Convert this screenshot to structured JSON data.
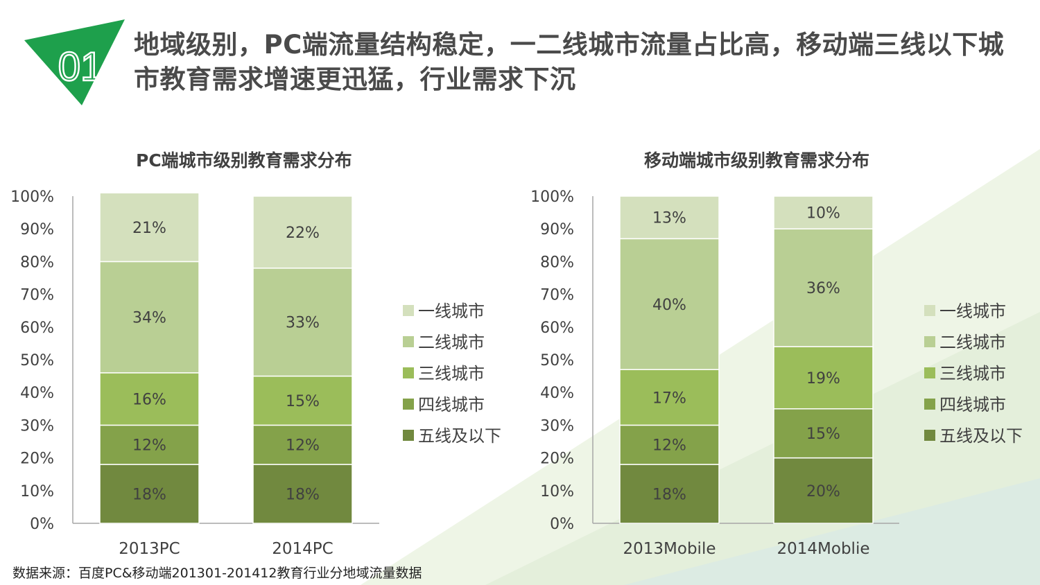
{
  "header": {
    "badge_number": "01",
    "title": "地域级别，PC端流量结构稳定，一二线城市流量占比高，移动端三线以下城市教育需求增速更迅猛，行业需求下沉"
  },
  "colors": {
    "badge_green": "#1ea04c",
    "tier1": "#d4e0bd",
    "tier2": "#b9cf94",
    "tier3": "#9bbd5a",
    "tier4": "#84a24a",
    "tier5": "#71893f",
    "axis": "#a6a6a6",
    "label_text": "#404040"
  },
  "legend": [
    "一线城市",
    "二线城市",
    "三线城市",
    "四线城市",
    "五线及以下"
  ],
  "chart_data": [
    {
      "type": "bar",
      "stacked": true,
      "title": "PC端城市级别教育需求分布",
      "categories": [
        "2013PC",
        "2014PC"
      ],
      "series": [
        {
          "name": "五线及以下",
          "values": [
            18,
            18
          ],
          "labels": [
            "18%",
            "18%"
          ]
        },
        {
          "name": "四线城市",
          "values": [
            12,
            12
          ],
          "labels": [
            "12%",
            "12%"
          ]
        },
        {
          "name": "三线城市",
          "values": [
            16,
            15
          ],
          "labels": [
            "16%",
            "15%"
          ]
        },
        {
          "name": "二线城市",
          "values": [
            34,
            33
          ],
          "labels": [
            "34%",
            "33%"
          ]
        },
        {
          "name": "一线城市",
          "values": [
            21,
            22
          ],
          "labels": [
            "21%",
            "22%"
          ]
        }
      ],
      "yticks": [
        "0%",
        "10%",
        "20%",
        "30%",
        "40%",
        "50%",
        "60%",
        "70%",
        "80%",
        "90%",
        "100%"
      ],
      "ylim": [
        0,
        100
      ],
      "legend_position": "right"
    },
    {
      "type": "bar",
      "stacked": true,
      "title": "移动端城市级别教育需求分布",
      "categories": [
        "2013Mobile",
        "2014Moblie"
      ],
      "series": [
        {
          "name": "五线及以下",
          "values": [
            18,
            20
          ],
          "labels": [
            "18%",
            "20%"
          ]
        },
        {
          "name": "四线城市",
          "values": [
            12,
            15
          ],
          "labels": [
            "12%",
            "15%"
          ]
        },
        {
          "name": "三线城市",
          "values": [
            17,
            19
          ],
          "labels": [
            "17%",
            "19%"
          ]
        },
        {
          "name": "二线城市",
          "values": [
            40,
            36
          ],
          "labels": [
            "40%",
            "36%"
          ]
        },
        {
          "name": "一线城市",
          "values": [
            13,
            10
          ],
          "labels": [
            "13%",
            "10%"
          ]
        }
      ],
      "yticks": [
        "0%",
        "10%",
        "20%",
        "30%",
        "40%",
        "50%",
        "60%",
        "70%",
        "80%",
        "90%",
        "100%"
      ],
      "ylim": [
        0,
        100
      ],
      "legend_position": "right"
    }
  ],
  "footer": {
    "source": "数据来源：百度PC&移动端201301-201412教育行业分地域流量数据"
  }
}
